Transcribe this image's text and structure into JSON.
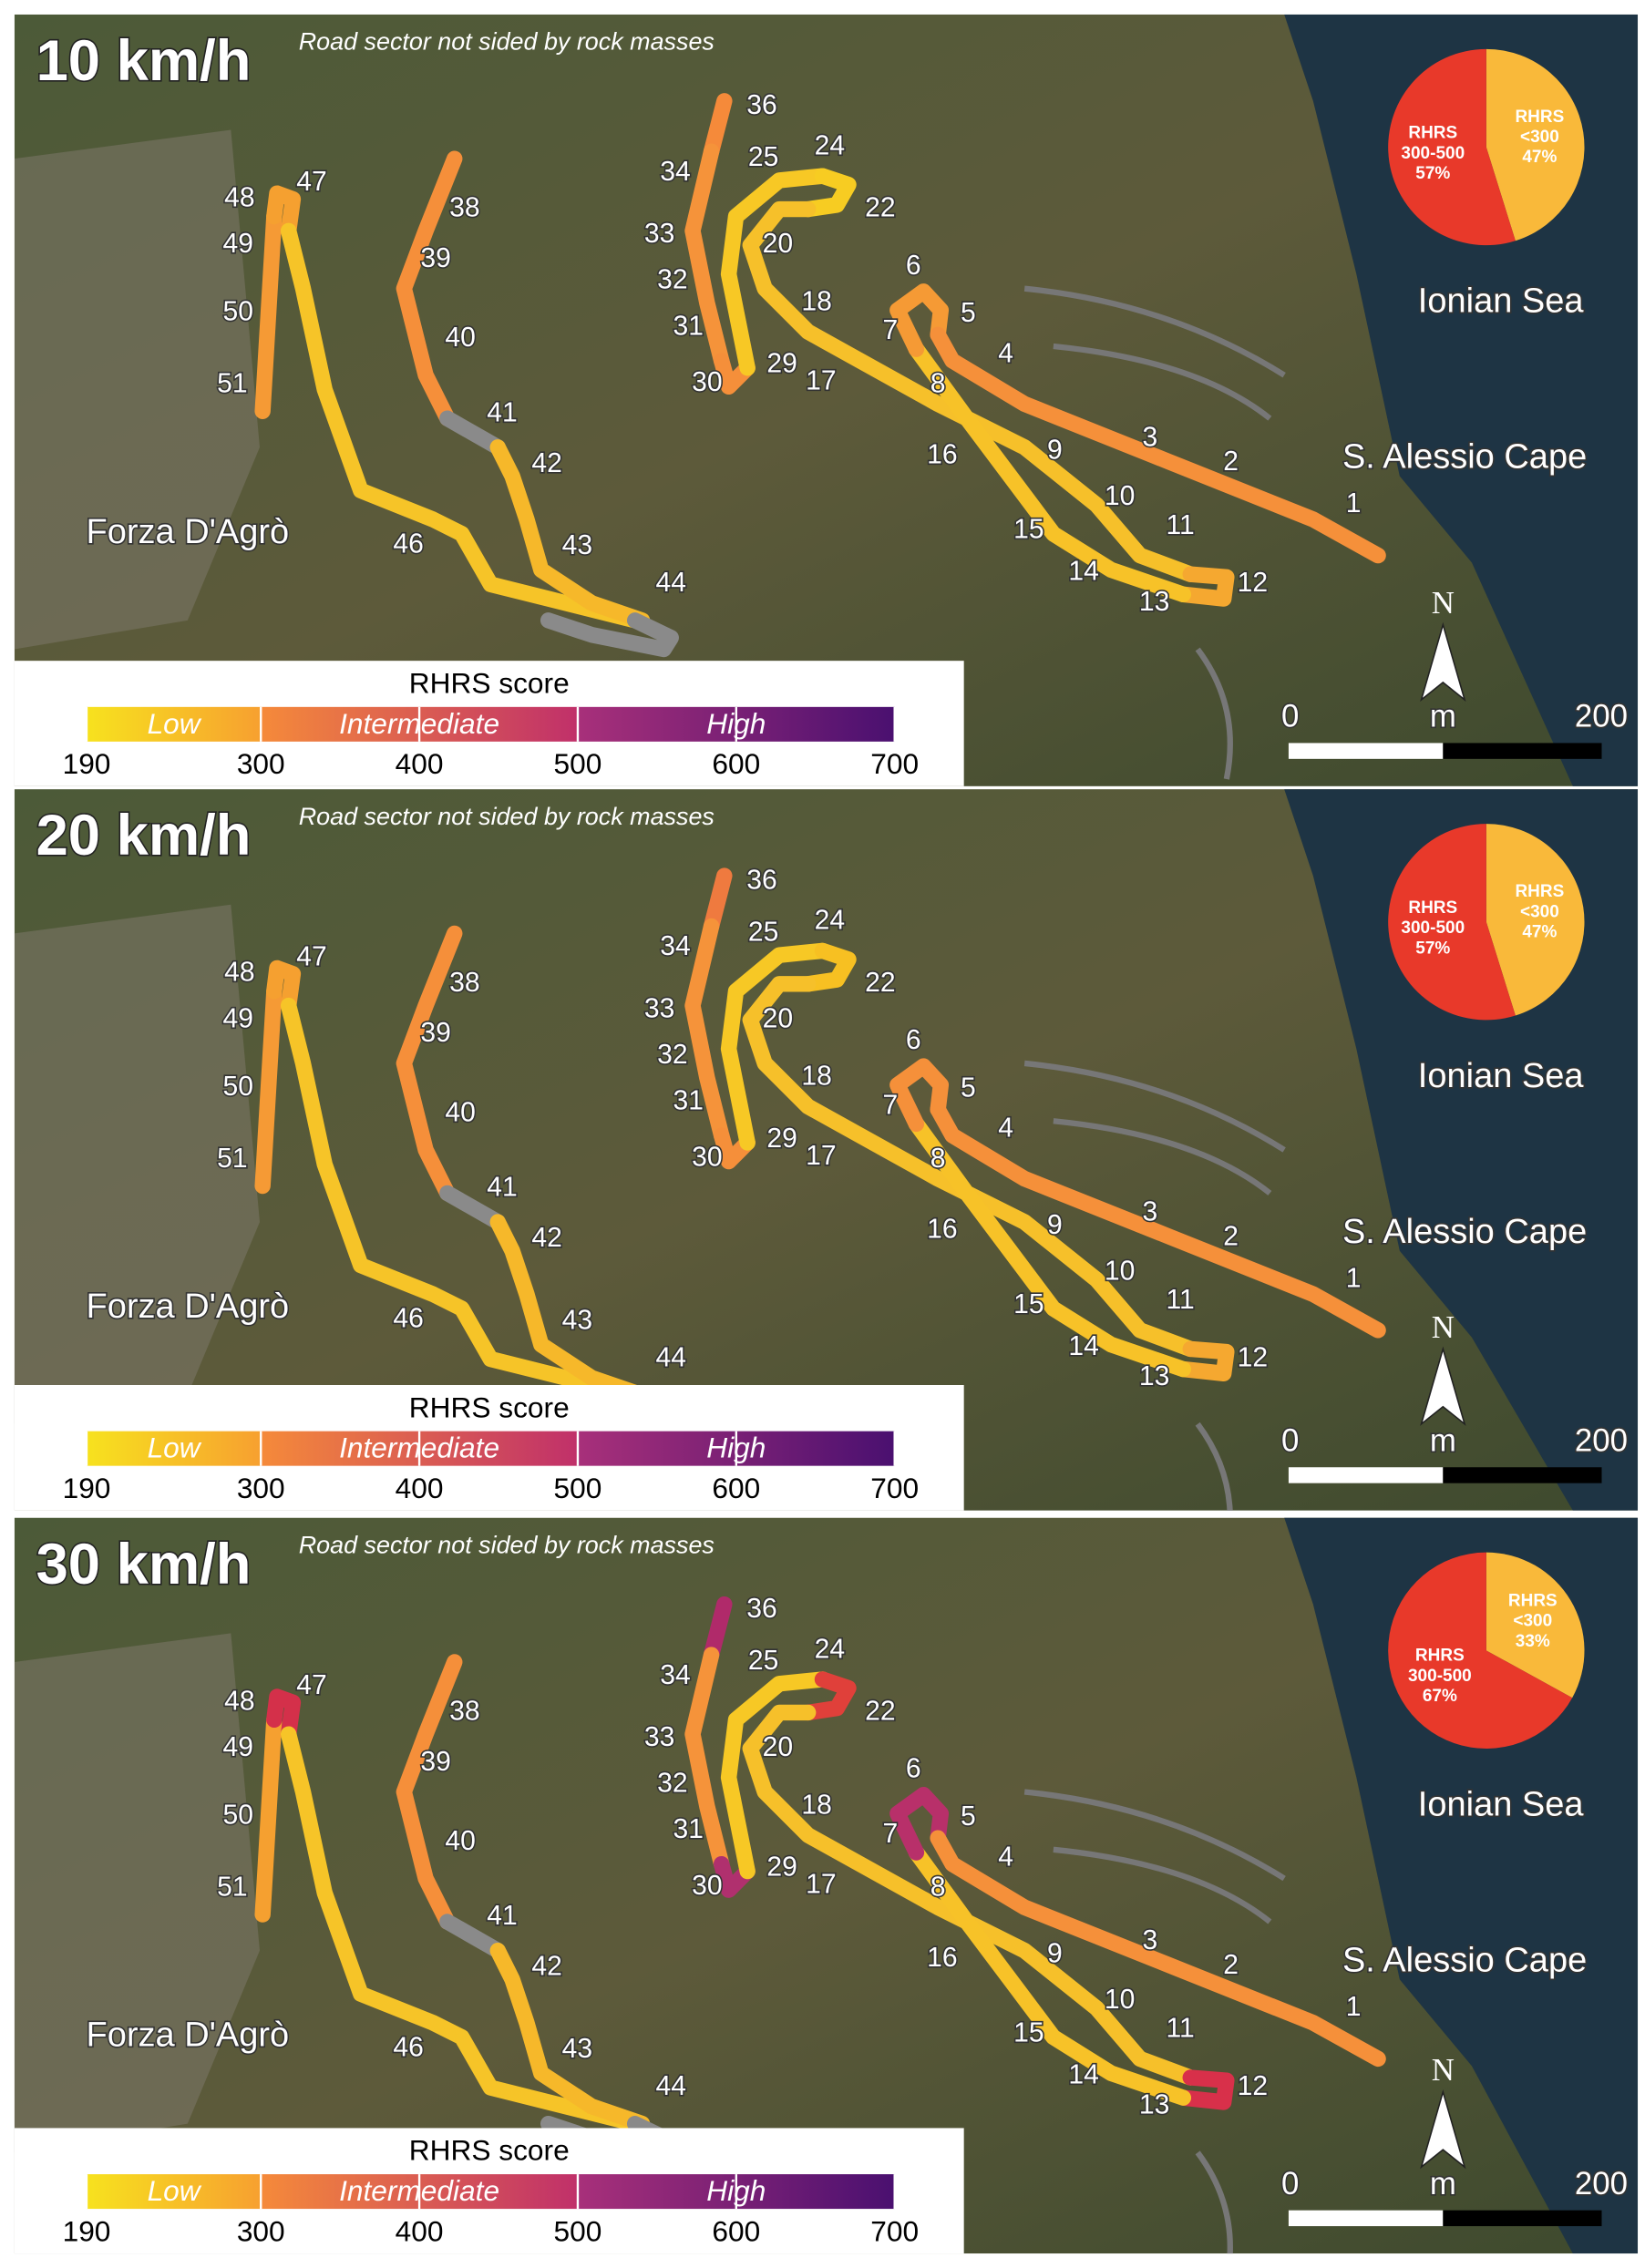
{
  "panels": [
    {
      "title": "10 km/h",
      "note": "Road sector not sided by rock masses",
      "route_colors": [
        "#f59a35",
        "#f5a030",
        "#f6c428",
        "#f58f3a",
        "#8a8a8a",
        "#f6b82a",
        "#8a8a8a",
        "#f58a3a",
        "#f5933a",
        "#f58f3a",
        "#f7c825",
        "#f7cc22",
        "#f6c02a",
        "#f5a830",
        "#f7c228",
        "#f59a35",
        "#f5903a"
      ],
      "pie": {
        "slices": [
          {
            "name": [
              "RHRS",
              "<300"
            ],
            "value": 47,
            "label": "47%",
            "color": "#f9b93a"
          },
          {
            "name": [
              "RHRS",
              "300-500"
            ],
            "value": 57,
            "label": "57%",
            "color": "#e8392a"
          }
        ]
      }
    },
    {
      "title": "20 km/h",
      "note": "Road sector not sided by rock masses",
      "route_colors": [
        "#f59a35",
        "#f5a030",
        "#f6c428",
        "#f58f3a",
        "#8a8a8a",
        "#f6b82a",
        "#8a8a8a",
        "#ef7a3f",
        "#f5933a",
        "#f58f3a",
        "#f7c825",
        "#f7c022",
        "#f6c02a",
        "#f5a830",
        "#f7c228",
        "#f5903a",
        "#f5903a"
      ],
      "pie": {
        "slices": [
          {
            "name": [
              "RHRS",
              "<300"
            ],
            "value": 47,
            "label": "47%",
            "color": "#f9b93a"
          },
          {
            "name": [
              "RHRS",
              "300-500"
            ],
            "value": 57,
            "label": "57%",
            "color": "#e8392a"
          }
        ]
      }
    },
    {
      "title": "30 km/h",
      "note": "Road sector not sided by rock masses",
      "route_colors": [
        "#f5a030",
        "#d4304a",
        "#f6c428",
        "#f58f3a",
        "#8a8a8a",
        "#f6b82a",
        "#8a8a8a",
        "#b02a6a",
        "#f5933a",
        "#b0306e",
        "#f7c825",
        "#e0403a",
        "#f6c02a",
        "#d8304a",
        "#f7c228",
        "#b8306a",
        "#f5903a"
      ],
      "pie": {
        "slices": [
          {
            "name": [
              "RHRS",
              "<300"
            ],
            "value": 33,
            "label": "33%",
            "color": "#f9b93a"
          },
          {
            "name": [
              "RHRS",
              "300-500"
            ],
            "value": 67,
            "label": "67%",
            "color": "#e8392a"
          }
        ]
      }
    }
  ],
  "segments": [
    "1",
    "2",
    "3",
    "4",
    "5",
    "6",
    "7",
    "8",
    "9",
    "10",
    "11",
    "12",
    "13",
    "14",
    "15",
    "16",
    "17",
    "18",
    "20",
    "22",
    "24",
    "25",
    "29",
    "30",
    "31",
    "32",
    "33",
    "34",
    "36",
    "38",
    "39",
    "40",
    "41",
    "42",
    "43",
    "44",
    "46",
    "47",
    "48",
    "49",
    "50",
    "51"
  ],
  "places": {
    "town": "Forza D'Agrò",
    "cape": "S. Alessio Cape",
    "sea": "Ionian Sea"
  },
  "legend": {
    "title": "RHRS score",
    "classes": [
      {
        "name": "Low",
        "colors": [
          "#f7e21e",
          "#f7a030"
        ]
      },
      {
        "name": "Intermediate",
        "colors": [
          "#f58a3a",
          "#c0306a"
        ]
      },
      {
        "name": "High",
        "colors": [
          "#a8307a",
          "#4a1070"
        ]
      }
    ],
    "ticks": [
      190,
      300,
      400,
      500,
      600,
      700
    ]
  },
  "scale_bar": {
    "labels": [
      "0",
      "m",
      "200"
    ]
  },
  "north": "N"
}
